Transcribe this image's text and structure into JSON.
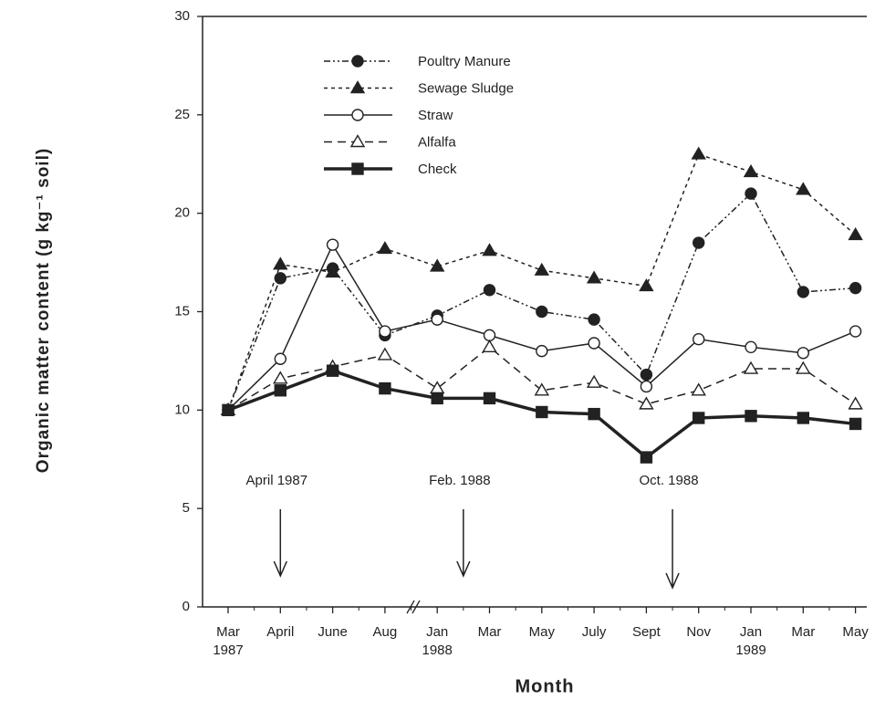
{
  "chart_data": {
    "type": "line",
    "x_label": "Month",
    "y_label": "Organic matter content (g kg⁻¹ soil)",
    "categories": [
      "Mar\n1987",
      "April",
      "June",
      "Aug",
      "Jan\n1988",
      "Mar",
      "May",
      "July",
      "Sept",
      "Nov",
      "Jan\n1989",
      "Mar",
      "May"
    ],
    "ylim": [
      0,
      30
    ],
    "yticks": [
      0,
      5,
      10,
      15,
      20,
      25,
      30
    ],
    "legend": "top-left",
    "annotations": [
      {
        "text": "April 1987",
        "category": 1
      },
      {
        "text": "Feb. 1988",
        "category": 4.5
      },
      {
        "text": "Oct. 1988",
        "category": 8.5
      }
    ],
    "series": [
      {
        "name": "Poultry Manure",
        "color": "#222",
        "style": "dash-dot-dot",
        "marker": "filled-circle",
        "values": [
          10,
          16.7,
          17.2,
          13.8,
          14.8,
          16.1,
          15.0,
          14.6,
          11.8,
          18.5,
          21.0,
          16.0,
          16.2
        ]
      },
      {
        "name": "Sewage Sludge",
        "color": "#222",
        "style": "short-dash",
        "marker": "filled-triangle",
        "values": [
          10,
          17.4,
          17.0,
          18.2,
          17.3,
          18.1,
          17.1,
          16.7,
          16.3,
          23.0,
          22.1,
          21.2,
          18.9
        ]
      },
      {
        "name": "Straw",
        "color": "#222",
        "style": "solid",
        "marker": "open-circle",
        "values": [
          10,
          12.6,
          18.4,
          14.0,
          14.6,
          13.8,
          13.0,
          13.4,
          11.2,
          13.6,
          13.2,
          12.9,
          14.0
        ]
      },
      {
        "name": "Alfalfa",
        "color": "#222",
        "style": "long-dash",
        "marker": "open-triangle",
        "values": [
          10,
          11.6,
          12.2,
          12.8,
          11.1,
          13.2,
          11.0,
          11.4,
          10.3,
          11.0,
          12.1,
          12.1,
          10.3
        ]
      },
      {
        "name": "Check",
        "color": "#222",
        "style": "thick",
        "marker": "filled-square",
        "values": [
          10,
          11.0,
          12.0,
          11.1,
          10.6,
          10.6,
          9.9,
          9.8,
          7.6,
          9.6,
          9.7,
          9.6,
          9.3
        ]
      }
    ]
  }
}
